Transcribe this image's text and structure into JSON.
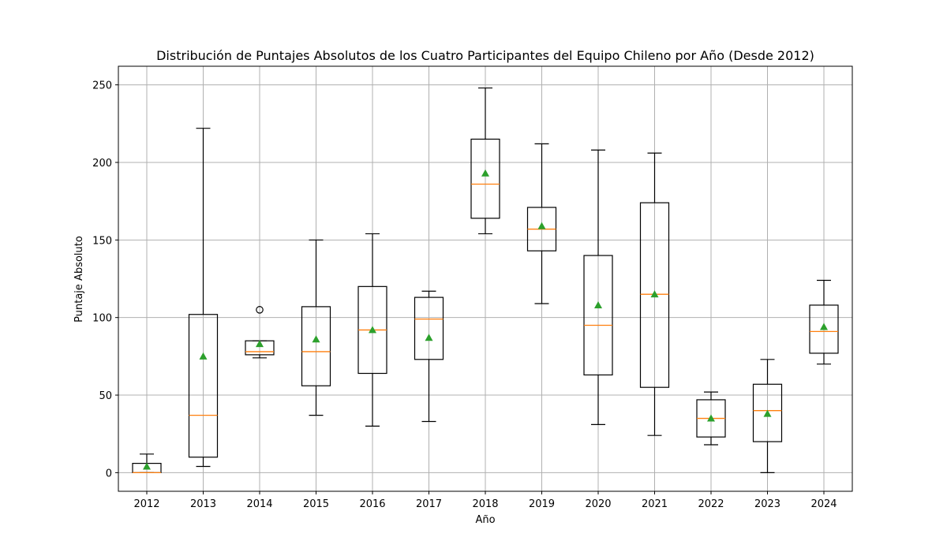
{
  "chart_data": {
    "type": "boxplot",
    "title": "Distribución de Puntajes Absolutos de los Cuatro Participantes del Equipo Chileno por Año (Desde 2012)",
    "xlabel": "Año",
    "ylabel": "Puntaje Absoluto",
    "ylim": [
      -12,
      262
    ],
    "yticks": [
      0,
      50,
      100,
      150,
      200,
      250
    ],
    "grid": true,
    "show_means": true,
    "colors": {
      "median": "#ff7f0e",
      "mean": "#2ca02c",
      "box": "#000000",
      "grid": "#b0b0b0"
    },
    "categories": [
      "2012",
      "2013",
      "2014",
      "2015",
      "2016",
      "2017",
      "2018",
      "2019",
      "2020",
      "2021",
      "2022",
      "2023",
      "2024"
    ],
    "boxes": [
      {
        "whisker_low": 0,
        "q1": 0,
        "median": 0,
        "q3": 6,
        "whisker_high": 12,
        "mean": 4,
        "outliers": []
      },
      {
        "whisker_low": 4,
        "q1": 10,
        "median": 37,
        "q3": 102,
        "whisker_high": 222,
        "mean": 75,
        "outliers": []
      },
      {
        "whisker_low": 74,
        "q1": 76,
        "median": 78,
        "q3": 85,
        "whisker_high": 85,
        "mean": 83,
        "outliers": [
          105
        ]
      },
      {
        "whisker_low": 37,
        "q1": 56,
        "median": 78,
        "q3": 107,
        "whisker_high": 150,
        "mean": 86,
        "outliers": []
      },
      {
        "whisker_low": 30,
        "q1": 64,
        "median": 92,
        "q3": 120,
        "whisker_high": 154,
        "mean": 92,
        "outliers": []
      },
      {
        "whisker_low": 33,
        "q1": 73,
        "median": 99,
        "q3": 113,
        "whisker_high": 117,
        "mean": 87,
        "outliers": []
      },
      {
        "whisker_low": 154,
        "q1": 164,
        "median": 186,
        "q3": 215,
        "whisker_high": 248,
        "mean": 193,
        "outliers": []
      },
      {
        "whisker_low": 109,
        "q1": 143,
        "median": 157,
        "q3": 171,
        "whisker_high": 212,
        "mean": 159,
        "outliers": []
      },
      {
        "whisker_low": 31,
        "q1": 63,
        "median": 95,
        "q3": 140,
        "whisker_high": 208,
        "mean": 108,
        "outliers": []
      },
      {
        "whisker_low": 24,
        "q1": 55,
        "median": 115,
        "q3": 174,
        "whisker_high": 206,
        "mean": 115,
        "outliers": []
      },
      {
        "whisker_low": 18,
        "q1": 23,
        "median": 35,
        "q3": 47,
        "whisker_high": 52,
        "mean": 35,
        "outliers": []
      },
      {
        "whisker_low": 0,
        "q1": 20,
        "median": 40,
        "q3": 57,
        "whisker_high": 73,
        "mean": 38,
        "outliers": []
      },
      {
        "whisker_low": 70,
        "q1": 77,
        "median": 91,
        "q3": 108,
        "whisker_high": 124,
        "mean": 94,
        "outliers": []
      }
    ]
  }
}
